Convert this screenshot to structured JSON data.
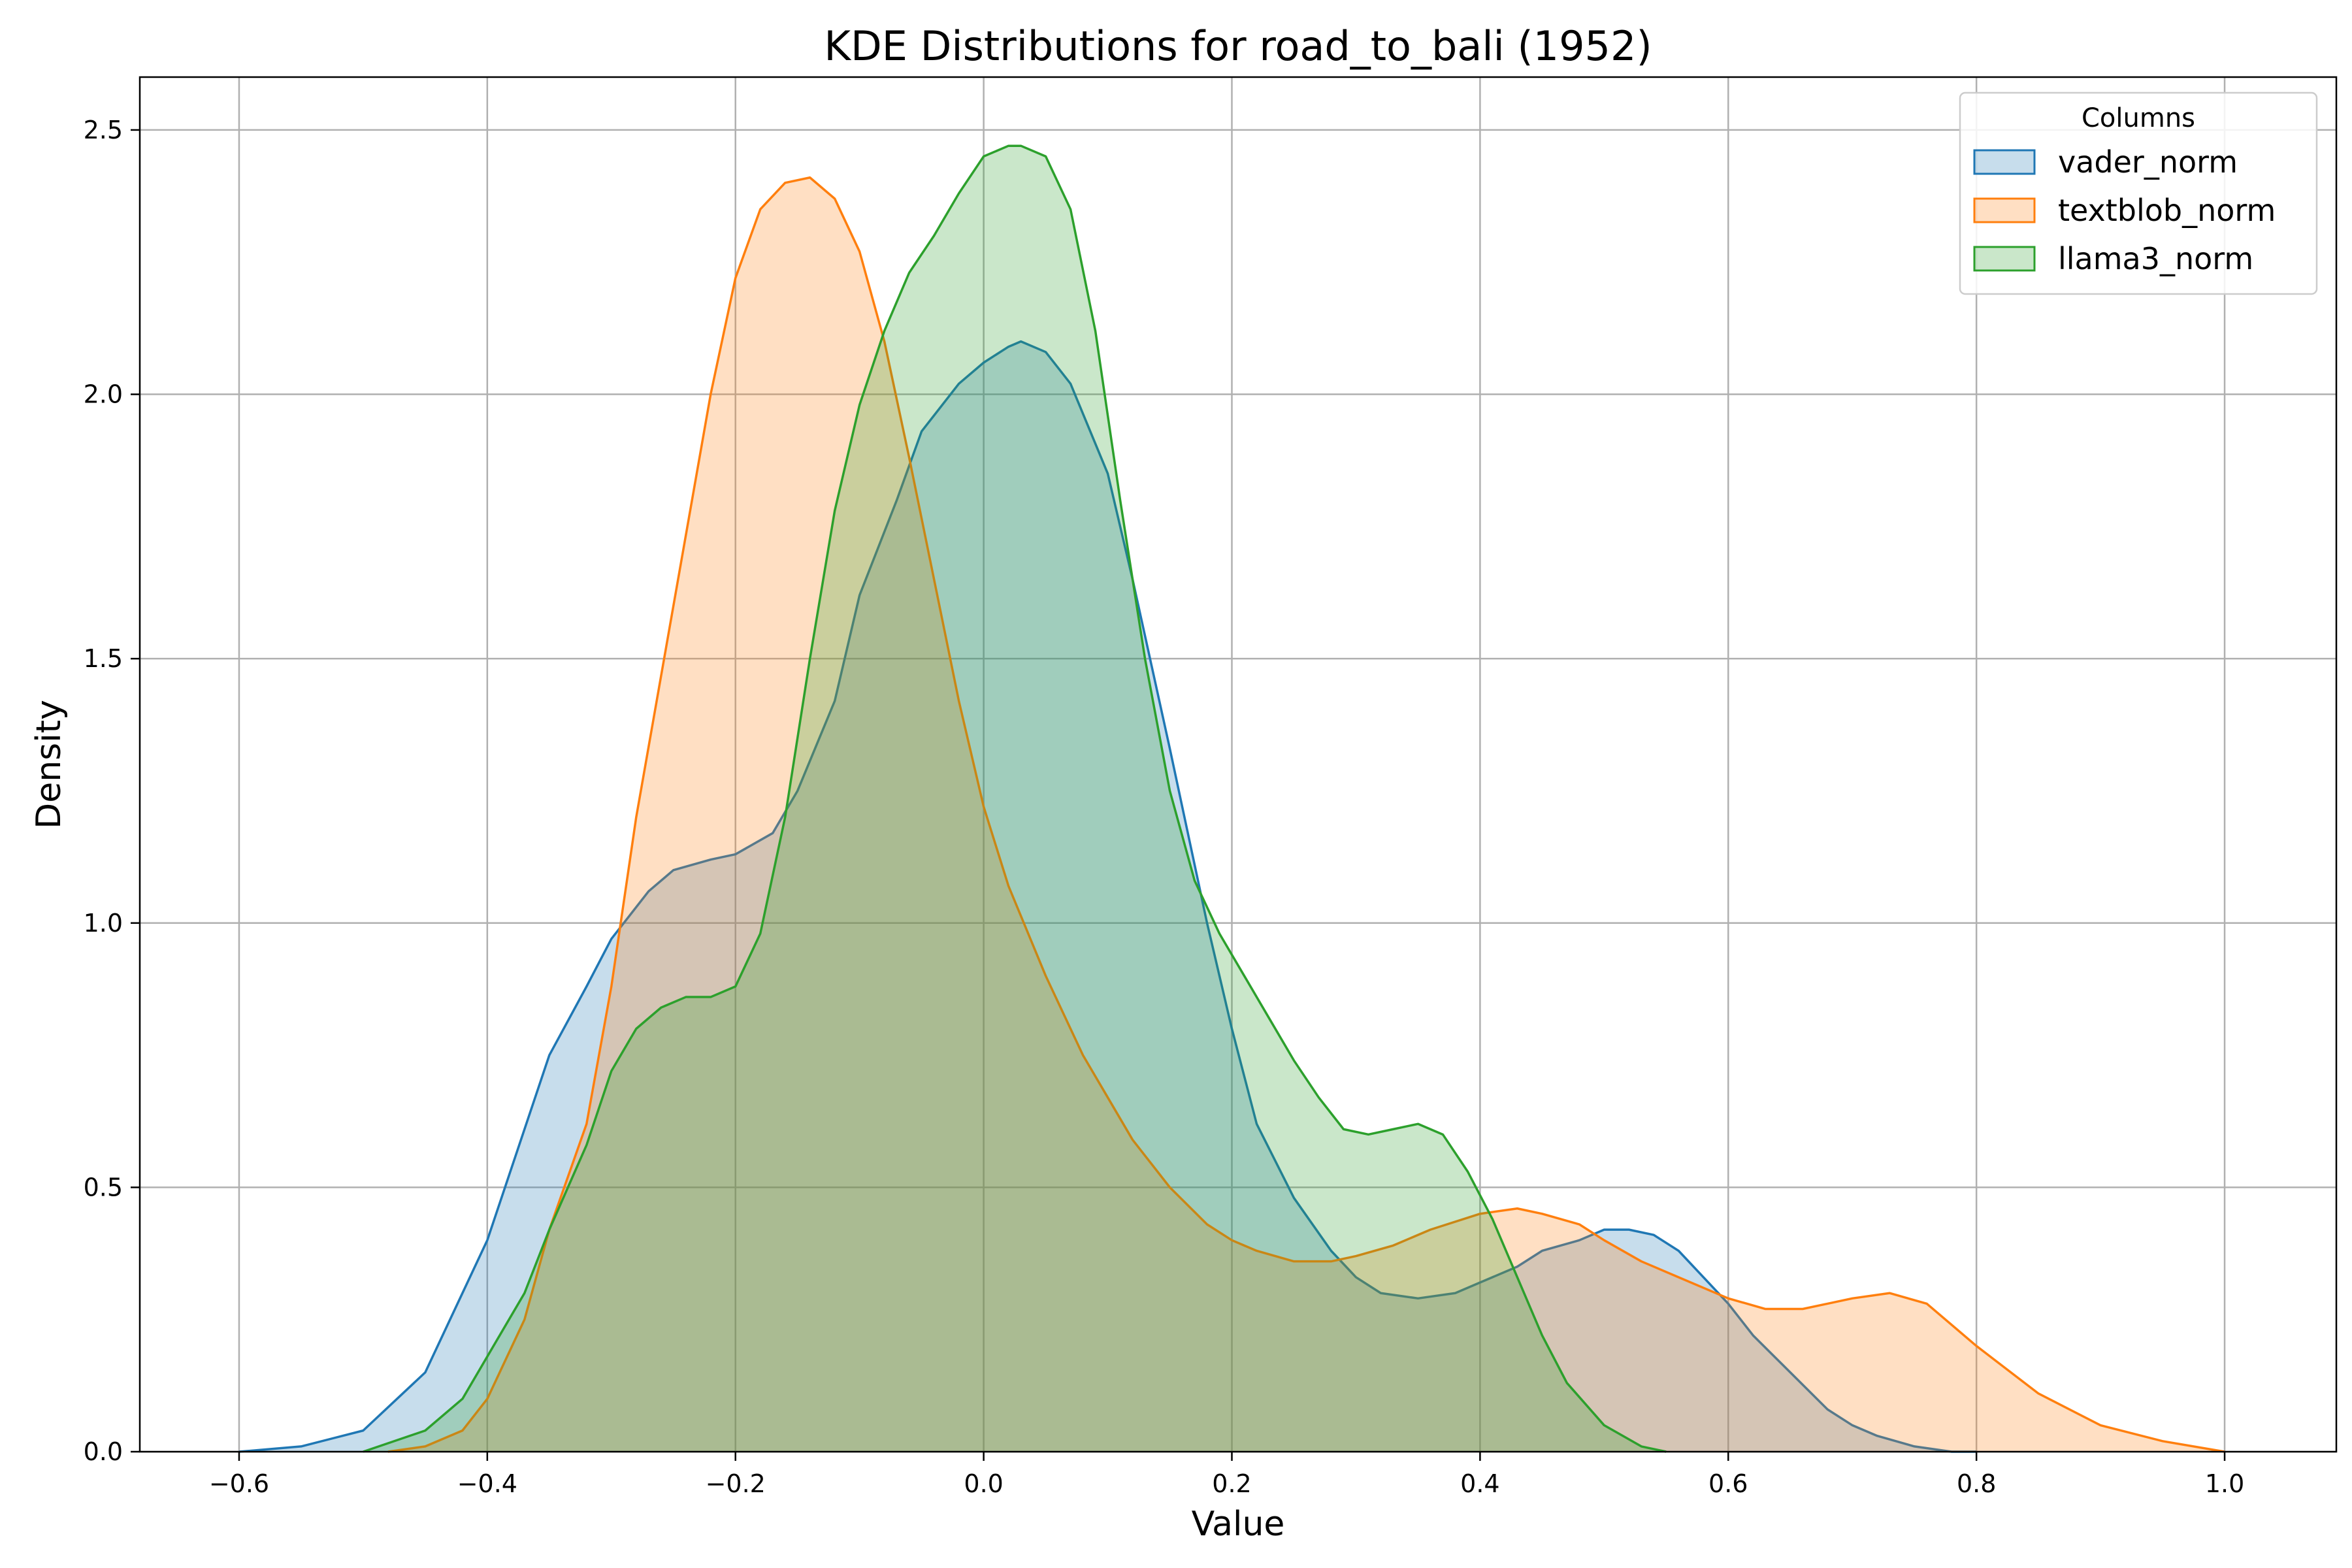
{
  "chart_data": {
    "type": "area",
    "title": "KDE Distributions for road_to_bali (1952)",
    "xlabel": "Value",
    "ylabel": "Density",
    "xlim": [
      -0.68,
      1.09
    ],
    "ylim": [
      0,
      2.6
    ],
    "xticks": [
      -0.6,
      -0.4,
      -0.2,
      0.0,
      0.2,
      0.4,
      0.6,
      0.8,
      1.0
    ],
    "xtick_labels": [
      "−0.6",
      "−0.4",
      "−0.2",
      "0.0",
      "0.2",
      "0.4",
      "0.6",
      "0.8",
      "1.0"
    ],
    "yticks": [
      0.0,
      0.5,
      1.0,
      1.5,
      2.0,
      2.5
    ],
    "ytick_labels": [
      "0.0",
      "0.5",
      "1.0",
      "1.5",
      "2.0",
      "2.5"
    ],
    "grid": true,
    "legend": {
      "title": "Columns",
      "position": "top-right"
    },
    "series": [
      {
        "name": "vader_norm",
        "color": "#1f77b4",
        "x": [
          -0.6,
          -0.55,
          -0.5,
          -0.45,
          -0.4,
          -0.35,
          -0.32,
          -0.3,
          -0.27,
          -0.25,
          -0.22,
          -0.2,
          -0.17,
          -0.15,
          -0.12,
          -0.1,
          -0.07,
          -0.05,
          -0.02,
          0.0,
          0.02,
          0.03,
          0.05,
          0.07,
          0.1,
          0.12,
          0.15,
          0.18,
          0.2,
          0.22,
          0.25,
          0.28,
          0.3,
          0.32,
          0.35,
          0.38,
          0.4,
          0.43,
          0.45,
          0.48,
          0.5,
          0.52,
          0.54,
          0.56,
          0.58,
          0.6,
          0.62,
          0.65,
          0.68,
          0.7,
          0.72,
          0.75,
          0.78,
          0.8
        ],
        "y": [
          0.0,
          0.01,
          0.04,
          0.15,
          0.4,
          0.75,
          0.88,
          0.97,
          1.06,
          1.1,
          1.12,
          1.13,
          1.17,
          1.25,
          1.42,
          1.62,
          1.8,
          1.93,
          2.02,
          2.06,
          2.09,
          2.1,
          2.08,
          2.02,
          1.85,
          1.65,
          1.33,
          1.0,
          0.8,
          0.62,
          0.48,
          0.38,
          0.33,
          0.3,
          0.29,
          0.3,
          0.32,
          0.35,
          0.38,
          0.4,
          0.42,
          0.42,
          0.41,
          0.38,
          0.33,
          0.28,
          0.22,
          0.15,
          0.08,
          0.05,
          0.03,
          0.01,
          0.0,
          0.0
        ]
      },
      {
        "name": "textblob_norm",
        "color": "#ff7f0e",
        "x": [
          -0.48,
          -0.45,
          -0.42,
          -0.4,
          -0.37,
          -0.35,
          -0.32,
          -0.3,
          -0.28,
          -0.25,
          -0.22,
          -0.2,
          -0.18,
          -0.16,
          -0.14,
          -0.12,
          -0.1,
          -0.08,
          -0.06,
          -0.04,
          -0.02,
          0.0,
          0.02,
          0.05,
          0.08,
          0.1,
          0.12,
          0.15,
          0.18,
          0.2,
          0.22,
          0.25,
          0.28,
          0.3,
          0.33,
          0.36,
          0.4,
          0.43,
          0.45,
          0.48,
          0.5,
          0.53,
          0.56,
          0.6,
          0.63,
          0.66,
          0.7,
          0.73,
          0.76,
          0.8,
          0.85,
          0.9,
          0.95,
          1.0
        ],
        "y": [
          0.0,
          0.01,
          0.04,
          0.1,
          0.25,
          0.42,
          0.62,
          0.88,
          1.2,
          1.6,
          2.0,
          2.22,
          2.35,
          2.4,
          2.41,
          2.37,
          2.27,
          2.1,
          1.88,
          1.65,
          1.42,
          1.22,
          1.07,
          0.9,
          0.75,
          0.67,
          0.59,
          0.5,
          0.43,
          0.4,
          0.38,
          0.36,
          0.36,
          0.37,
          0.39,
          0.42,
          0.45,
          0.46,
          0.45,
          0.43,
          0.4,
          0.36,
          0.33,
          0.29,
          0.27,
          0.27,
          0.29,
          0.3,
          0.28,
          0.2,
          0.11,
          0.05,
          0.02,
          0.0
        ]
      },
      {
        "name": "llama3_norm",
        "color": "#2ca02c",
        "x": [
          -0.5,
          -0.45,
          -0.42,
          -0.4,
          -0.37,
          -0.35,
          -0.32,
          -0.3,
          -0.28,
          -0.26,
          -0.24,
          -0.22,
          -0.2,
          -0.18,
          -0.16,
          -0.14,
          -0.12,
          -0.1,
          -0.08,
          -0.06,
          -0.04,
          -0.02,
          0.0,
          0.02,
          0.03,
          0.05,
          0.07,
          0.09,
          0.11,
          0.13,
          0.15,
          0.17,
          0.19,
          0.21,
          0.23,
          0.25,
          0.27,
          0.29,
          0.31,
          0.33,
          0.35,
          0.37,
          0.39,
          0.41,
          0.43,
          0.45,
          0.47,
          0.5,
          0.53,
          0.55
        ],
        "y": [
          0.0,
          0.04,
          0.1,
          0.18,
          0.3,
          0.42,
          0.58,
          0.72,
          0.8,
          0.84,
          0.86,
          0.86,
          0.88,
          0.98,
          1.2,
          1.5,
          1.78,
          1.98,
          2.12,
          2.23,
          2.3,
          2.38,
          2.45,
          2.47,
          2.47,
          2.45,
          2.35,
          2.12,
          1.8,
          1.5,
          1.25,
          1.08,
          0.98,
          0.9,
          0.82,
          0.74,
          0.67,
          0.61,
          0.6,
          0.61,
          0.62,
          0.6,
          0.53,
          0.44,
          0.33,
          0.22,
          0.13,
          0.05,
          0.01,
          0.0
        ]
      }
    ]
  }
}
